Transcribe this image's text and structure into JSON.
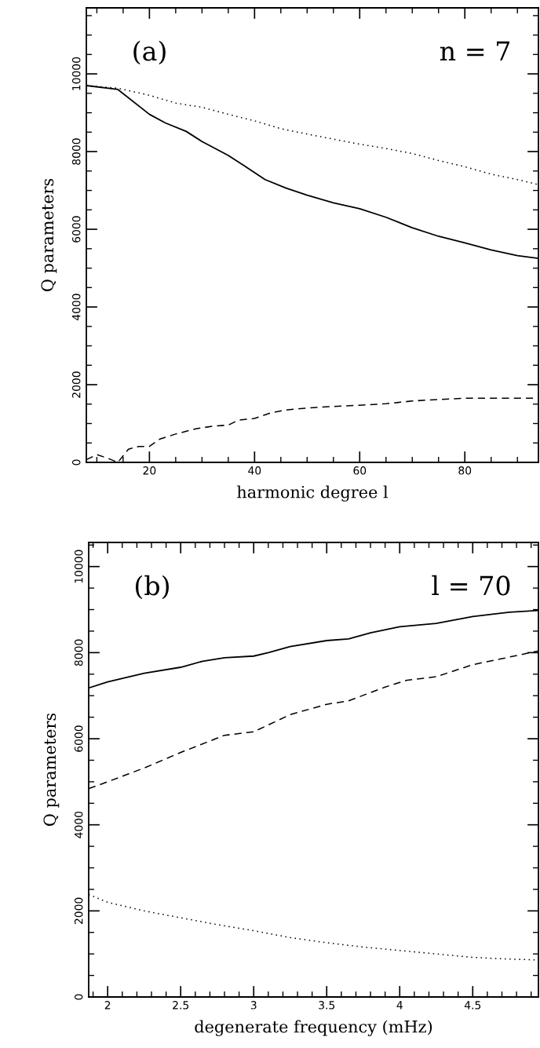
{
  "chart_data": [
    {
      "type": "line",
      "xlabel": "harmonic degree l",
      "ylabel": "Q parameters",
      "annotations": [
        "(a)",
        "n = 7"
      ],
      "xlim": [
        8,
        94
      ],
      "ylim": [
        0,
        11700
      ],
      "xticks": [
        {
          "value": 10,
          "label": null
        },
        {
          "value": 15,
          "label": null
        },
        20,
        {
          "value": 25,
          "label": null
        },
        {
          "value": 30,
          "label": null
        },
        {
          "value": 35,
          "label": null
        },
        40,
        {
          "value": 45,
          "label": null
        },
        {
          "value": 50,
          "label": null
        },
        {
          "value": 55,
          "label": null
        },
        60,
        {
          "value": 65,
          "label": null
        },
        {
          "value": 70,
          "label": null
        },
        {
          "value": 75,
          "label": null
        },
        80,
        {
          "value": 85,
          "label": null
        },
        {
          "value": 90,
          "label": null
        }
      ],
      "yticks": [
        0,
        {
          "value": 500,
          "label": null
        },
        {
          "value": 1000,
          "label": null
        },
        {
          "value": 1500,
          "label": null
        },
        2000,
        {
          "value": 2500,
          "label": null
        },
        {
          "value": 3000,
          "label": null
        },
        {
          "value": 3500,
          "label": null
        },
        4000,
        {
          "value": 4500,
          "label": null
        },
        {
          "value": 5000,
          "label": null
        },
        {
          "value": 5500,
          "label": null
        },
        6000,
        {
          "value": 6500,
          "label": null
        },
        {
          "value": 7000,
          "label": null
        },
        {
          "value": 7500,
          "label": null
        },
        8000,
        {
          "value": 8500,
          "label": null
        },
        {
          "value": 9000,
          "label": null
        },
        {
          "value": 9500,
          "label": null
        },
        10000,
        {
          "value": 10500,
          "label": null
        },
        {
          "value": 11000,
          "label": null
        },
        {
          "value": 11500,
          "label": null
        }
      ],
      "grid": false,
      "legend": false,
      "series": [
        {
          "color": "#000000",
          "line_style": "solid",
          "x": [
            8,
            14,
            20,
            23,
            27,
            30,
            35,
            38,
            42,
            46,
            50,
            55,
            60,
            65,
            70,
            75,
            80,
            85,
            90,
            94
          ],
          "values": [
            9700,
            9600,
            8960,
            8740,
            8520,
            8260,
            7900,
            7640,
            7280,
            7060,
            6880,
            6680,
            6530,
            6310,
            6040,
            5820,
            5650,
            5470,
            5320,
            5250
          ]
        },
        {
          "color": "#000000",
          "line_style": "dotted",
          "x": [
            8,
            14,
            20,
            25,
            30,
            35,
            40,
            45,
            50,
            55,
            60,
            65,
            70,
            75,
            80,
            85,
            90,
            94
          ],
          "values": [
            9700,
            9630,
            9450,
            9250,
            9140,
            8960,
            8790,
            8590,
            8450,
            8320,
            8190,
            8080,
            7950,
            7770,
            7610,
            7420,
            7280,
            7150
          ]
        },
        {
          "color": "#000000",
          "line_style": "dashed",
          "x": [
            8,
            10,
            12,
            14,
            16,
            18,
            20,
            22,
            25,
            29,
            32,
            35,
            37,
            40,
            43,
            46,
            50,
            55,
            60,
            65,
            70,
            75,
            80,
            85,
            90,
            94
          ],
          "values": [
            70,
            200,
            110,
            0,
            340,
            410,
            410,
            600,
            730,
            870,
            930,
            960,
            1090,
            1130,
            1270,
            1350,
            1400,
            1440,
            1470,
            1510,
            1580,
            1620,
            1650,
            1650,
            1650,
            1650
          ]
        }
      ]
    },
    {
      "type": "line",
      "xlabel": "degenerate frequency (mHz)",
      "ylabel": "Q parameters",
      "annotations": [
        "(b)",
        "l = 70"
      ],
      "xlim": [
        1.87,
        4.95
      ],
      "ylim": [
        0,
        10560
      ],
      "xticks": [
        {
          "value": 1.9,
          "label": null
        },
        2,
        {
          "value": 2.1,
          "label": null
        },
        {
          "value": 2.2,
          "label": null
        },
        {
          "value": 2.3,
          "label": null
        },
        {
          "value": 2.4,
          "label": null
        },
        2.5,
        {
          "value": 2.6,
          "label": null
        },
        {
          "value": 2.7,
          "label": null
        },
        {
          "value": 2.8,
          "label": null
        },
        {
          "value": 2.9,
          "label": null
        },
        3,
        {
          "value": 3.1,
          "label": null
        },
        {
          "value": 3.2,
          "label": null
        },
        {
          "value": 3.3,
          "label": null
        },
        {
          "value": 3.4,
          "label": null
        },
        3.5,
        {
          "value": 3.6,
          "label": null
        },
        {
          "value": 3.7,
          "label": null
        },
        {
          "value": 3.8,
          "label": null
        },
        {
          "value": 3.9,
          "label": null
        },
        4,
        {
          "value": 4.1,
          "label": null
        },
        {
          "value": 4.2,
          "label": null
        },
        {
          "value": 4.3,
          "label": null
        },
        {
          "value": 4.4,
          "label": null
        },
        4.5,
        {
          "value": 4.6,
          "label": null
        },
        {
          "value": 4.7,
          "label": null
        },
        {
          "value": 4.8,
          "label": null
        },
        {
          "value": 4.9,
          "label": null
        }
      ],
      "yticks": [
        0,
        {
          "value": 500,
          "label": null
        },
        {
          "value": 1000,
          "label": null
        },
        {
          "value": 1500,
          "label": null
        },
        2000,
        {
          "value": 2500,
          "label": null
        },
        {
          "value": 3000,
          "label": null
        },
        {
          "value": 3500,
          "label": null
        },
        4000,
        {
          "value": 4500,
          "label": null
        },
        {
          "value": 5000,
          "label": null
        },
        {
          "value": 5500,
          "label": null
        },
        6000,
        {
          "value": 6500,
          "label": null
        },
        {
          "value": 7000,
          "label": null
        },
        {
          "value": 7500,
          "label": null
        },
        8000,
        {
          "value": 8500,
          "label": null
        },
        {
          "value": 9000,
          "label": null
        },
        {
          "value": 9500,
          "label": null
        },
        10000,
        {
          "value": 10500,
          "label": null
        }
      ],
      "grid": false,
      "legend": false,
      "series": [
        {
          "color": "#000000",
          "line_style": "solid",
          "x": [
            1.87,
            2,
            2.25,
            2.5,
            2.65,
            2.8,
            3,
            3.1,
            3.25,
            3.5,
            3.65,
            3.8,
            4,
            4.25,
            4.5,
            4.75,
            4.95
          ],
          "values": [
            7180,
            7320,
            7520,
            7660,
            7800,
            7880,
            7920,
            8000,
            8140,
            8280,
            8320,
            8460,
            8600,
            8680,
            8840,
            8940,
            8980
          ]
        },
        {
          "color": "#000000",
          "line_style": "dashed",
          "x": [
            1.87,
            2,
            2.25,
            2.5,
            2.8,
            3,
            3.25,
            3.5,
            3.65,
            3.9,
            4.05,
            4.25,
            4.5,
            4.7,
            4.95
          ],
          "values": [
            4840,
            5000,
            5320,
            5680,
            6080,
            6160,
            6560,
            6800,
            6880,
            7200,
            7360,
            7440,
            7720,
            7860,
            8040
          ]
        },
        {
          "color": "#000000",
          "line_style": "dotted",
          "x": [
            1.87,
            2,
            2.25,
            2.5,
            2.75,
            3,
            3.25,
            3.5,
            3.75,
            4,
            4.25,
            4.5,
            4.75,
            4.95
          ],
          "values": [
            2380,
            2200,
            2000,
            1840,
            1680,
            1540,
            1380,
            1260,
            1160,
            1080,
            1000,
            920,
            880,
            860
          ]
        }
      ]
    }
  ]
}
